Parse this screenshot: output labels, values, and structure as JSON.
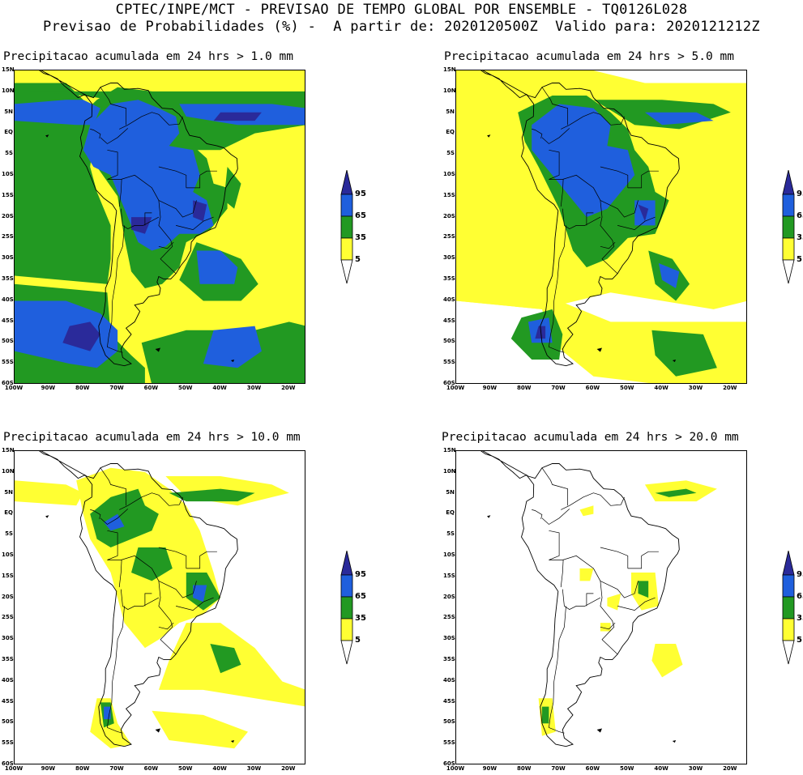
{
  "header": {
    "line1": "CPTEC/INPE/MCT - PREVISAO DE TEMPO GLOBAL POR ENSEMBLE - TQ0126L028",
    "line2": "Previsao de Probabilidades (%) -  A partir de: 2020120500Z  Valido para: 2020121212Z"
  },
  "colors": {
    "yellow": "#ffff33",
    "green": "#229922",
    "blue": "#1f5fdd",
    "navy": "#2a2a9a"
  },
  "colorbar": {
    "levels": [
      "95",
      "65",
      "35",
      "5"
    ]
  },
  "lat_labels": [
    "15N",
    "10N",
    "5N",
    "EQ",
    "5S",
    "10S",
    "15S",
    "20S",
    "25S",
    "30S",
    "35S",
    "40S",
    "45S",
    "50S",
    "55S",
    "60S"
  ],
  "lon_labels": [
    "100W",
    "90W",
    "80W",
    "70W",
    "60W",
    "50W",
    "40W",
    "30W",
    "20W"
  ],
  "panels": [
    {
      "id": "p1",
      "title": "Precipitacao acumulada em 24 hrs > 1.0 mm"
    },
    {
      "id": "p2",
      "title": "Precipitacao acumulada em 24 hrs > 5.0 mm"
    },
    {
      "id": "p3",
      "title": "Precipitacao acumulada em 24 hrs > 10.0 mm"
    },
    {
      "id": "p4",
      "title": "Precipitacao acumulada em 24 hrs > 20.0 mm"
    }
  ]
}
